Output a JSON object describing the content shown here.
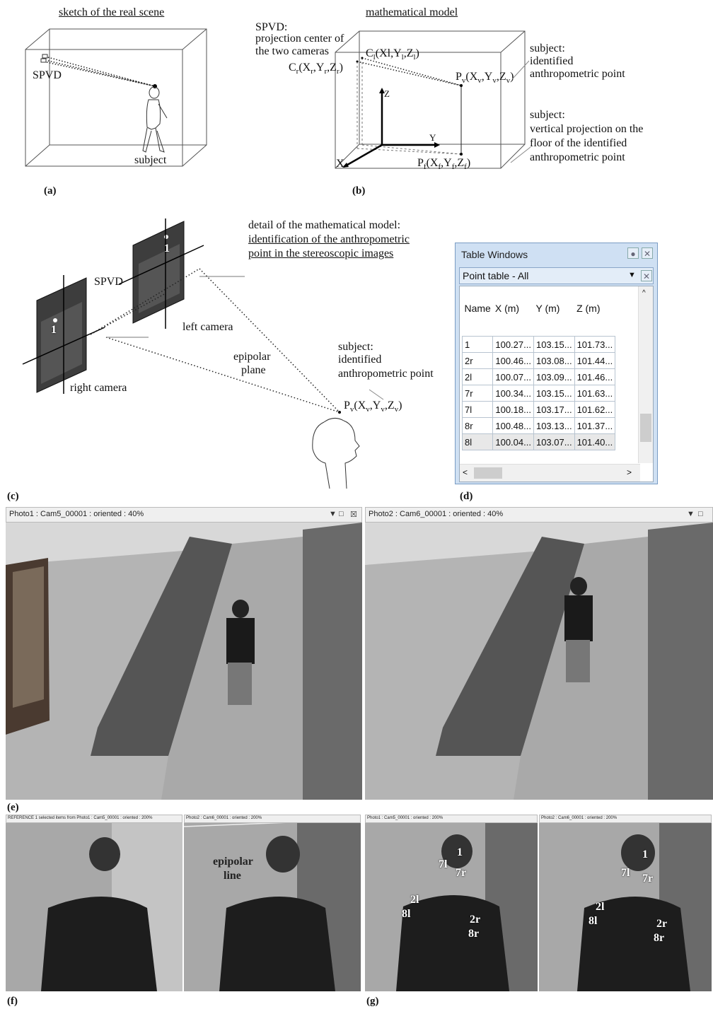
{
  "panel_a": {
    "title": "sketch of the real scene",
    "label": "(a)",
    "spvd": "SPVD",
    "subject": "subject"
  },
  "panel_b": {
    "title": "mathematical model",
    "label": "(b)",
    "spvd_l1": "SPVD:",
    "spvd_l2": "projection center of",
    "spvd_l3": "the two cameras",
    "cl": "C",
    "cl_sub": "l",
    "cl_coords": "(X",
    "cr": "C",
    "pv": "P",
    "pf": "P",
    "axis_z": "Z",
    "axis_y": "Y",
    "axis_x": "X",
    "subj1_l1": "subject:",
    "subj1_l2": "identified",
    "subj1_l3": "anthropometric point",
    "subj2_l1": "subject:",
    "subj2_l2": "vertical projection on the",
    "subj2_l3": "floor of the identified",
    "subj2_l4": "anthropometric point"
  },
  "panel_c": {
    "label": "(c)",
    "title_l1": "detail of the mathematical model:",
    "title_l2": "identification of the anthropometric",
    "title_l3": "point in the stereoscopic images",
    "spvd": "SPVD",
    "left_camera": "left camera",
    "right_camera": "right camera",
    "epipolar_l1": "epipolar",
    "epipolar_l2": "plane",
    "subj_l1": "subject:",
    "subj_l2": "identified",
    "subj_l3": "anthropometric point",
    "point_num": "1",
    "pv": "P"
  },
  "panel_d": {
    "label": "(d)",
    "window_title": "Table Windows",
    "dropdown": "Point table - All",
    "columns": [
      "Name",
      "X (m)",
      "Y (m)",
      "Z (m)"
    ],
    "rows": [
      [
        "1",
        "100.27...",
        "103.15...",
        "101.73..."
      ],
      [
        "2r",
        "100.46...",
        "103.08...",
        "101.44..."
      ],
      [
        "2l",
        "100.07...",
        "103.09...",
        "101.46..."
      ],
      [
        "7r",
        "100.34...",
        "103.15...",
        "101.63..."
      ],
      [
        "7l",
        "100.18...",
        "103.17...",
        "101.62..."
      ],
      [
        "8r",
        "100.48...",
        "103.13...",
        "101.37..."
      ],
      [
        "8l",
        "100.04...",
        "103.07...",
        "101.40..."
      ]
    ]
  },
  "panel_e": {
    "label": "(e)",
    "photo1_title": "Photo1 : Cam5_00001 : oriented : 40%",
    "photo2_title": "Photo2 : Cam6_00001 : oriented : 40%"
  },
  "panel_f": {
    "label": "(f)",
    "title1": "REFERENCE 1 selected items from Photo1 : Cam5_00001 : oriented : 200%",
    "title2": "Photo2 : Cam6_00001 : oriented : 200%",
    "epi_l1": "epipolar",
    "epi_l2": "line"
  },
  "panel_g": {
    "label": "(g)",
    "title1": "Photo1 : Cam5_00001 : oriented : 200%",
    "title2": "Photo2 : Cam6_00001 : oriented : 200%",
    "points": [
      "1",
      "7l",
      "7r",
      "2l",
      "8l",
      "2r",
      "8r"
    ]
  }
}
